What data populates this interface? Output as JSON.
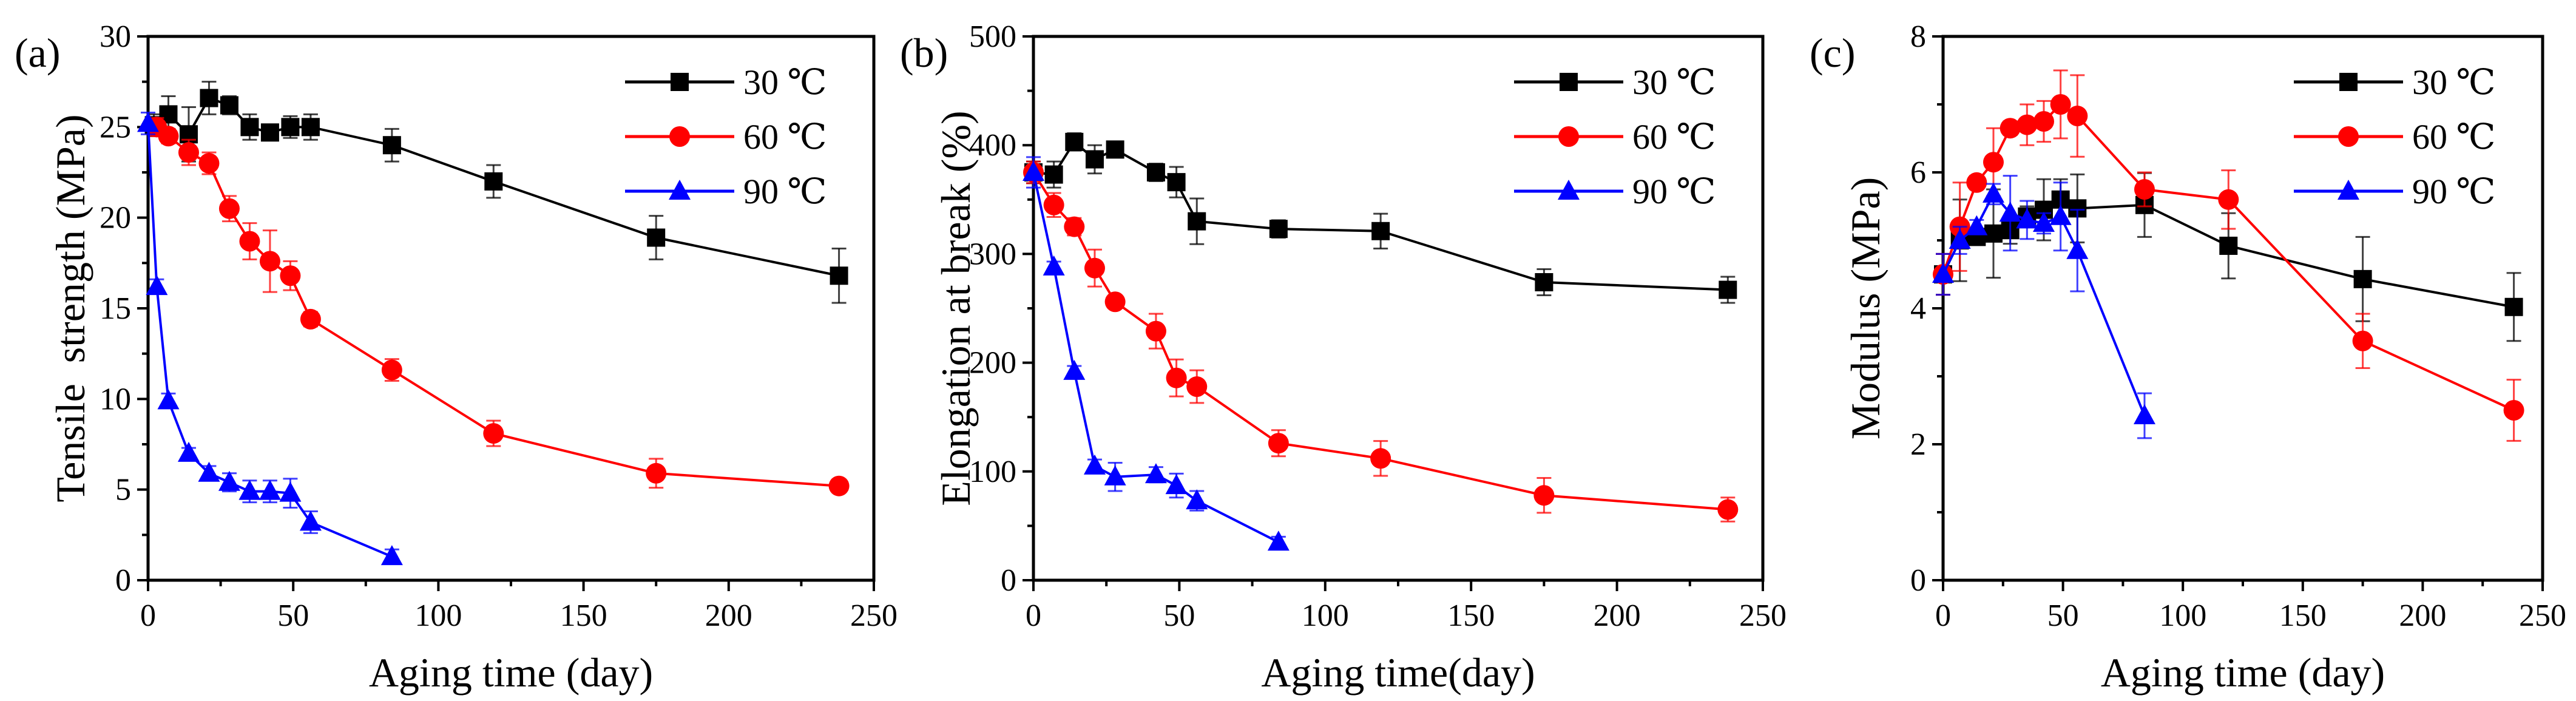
{
  "colors": {
    "30": "#000000",
    "60": "#ff0000",
    "90": "#0000ff"
  },
  "chart_data": [
    {
      "type": "line",
      "panel_label": "(a)",
      "xlabel": "Aging time (day)",
      "ylabel": "Tensile  strength (MPa)",
      "xlim": [
        0,
        250
      ],
      "ylim": [
        0,
        30
      ],
      "xticks": [
        0,
        50,
        100,
        150,
        200,
        250
      ],
      "yticks": [
        0,
        5,
        10,
        15,
        20,
        25,
        30
      ],
      "grid": false,
      "legend_position": "top-right",
      "series": [
        {
          "name": "30 ℃",
          "marker": "square",
          "color": "#000000",
          "x": [
            2,
            7,
            14,
            21,
            28,
            35,
            42,
            49,
            56,
            84,
            119,
            175,
            238
          ],
          "y": [
            25.1,
            25.7,
            24.6,
            26.6,
            26.2,
            25.0,
            24.7,
            25.0,
            25.0,
            24.0,
            22.0,
            18.9,
            16.8
          ],
          "err": [
            0.6,
            1.0,
            1.5,
            0.9,
            0.5,
            0.7,
            0.3,
            0.6,
            0.7,
            0.9,
            0.9,
            1.2,
            1.5
          ]
        },
        {
          "name": "60 ℃",
          "marker": "circle",
          "color": "#ff0000",
          "x": [
            3,
            7,
            14,
            21,
            28,
            35,
            42,
            49,
            56,
            84,
            119,
            175,
            238
          ],
          "y": [
            25.0,
            24.5,
            23.6,
            23.0,
            20.5,
            18.7,
            17.6,
            16.8,
            14.4,
            11.6,
            8.1,
            5.9,
            5.2
          ],
          "err": [
            0.5,
            0.4,
            0.7,
            0.6,
            0.7,
            1.0,
            1.7,
            0.8,
            0.4,
            0.6,
            0.7,
            0.8,
            0.3
          ]
        },
        {
          "name": "90 ℃",
          "marker": "triangle",
          "color": "#0000ff",
          "x": [
            0,
            3,
            7,
            14,
            21,
            28,
            35,
            42,
            49,
            56,
            84
          ],
          "y": [
            25.2,
            16.2,
            9.9,
            7.0,
            5.9,
            5.4,
            4.9,
            4.9,
            4.8,
            3.2,
            1.3
          ],
          "err": [
            0.6,
            0.4,
            0.4,
            0.3,
            0.4,
            0.5,
            0.6,
            0.6,
            0.8,
            0.6,
            0.4
          ]
        }
      ]
    },
    {
      "type": "line",
      "panel_label": "(b)",
      "xlabel": "Aging time(day)",
      "ylabel": "Elongation at break (%)",
      "xlim": [
        0,
        250
      ],
      "ylim": [
        0,
        500
      ],
      "xticks": [
        0,
        50,
        100,
        150,
        200,
        250
      ],
      "yticks": [
        0,
        100,
        200,
        300,
        400,
        500
      ],
      "grid": false,
      "legend_position": "top-right",
      "series": [
        {
          "name": "30 ℃",
          "marker": "square",
          "color": "#000000",
          "x": [
            0,
            7,
            14,
            21,
            28,
            42,
            49,
            56,
            84,
            119,
            175,
            238
          ],
          "y": [
            375,
            373,
            403,
            387,
            396,
            375,
            366,
            330,
            323,
            321,
            274,
            267
          ],
          "err": [
            10,
            12,
            8,
            13,
            5,
            8,
            14,
            21,
            8,
            16,
            12,
            12
          ]
        },
        {
          "name": "60 ℃",
          "marker": "circle",
          "color": "#ff0000",
          "x": [
            0,
            7,
            14,
            21,
            28,
            42,
            49,
            56,
            84,
            119,
            175,
            238
          ],
          "y": [
            375,
            345,
            325,
            287,
            256,
            229,
            186,
            178,
            126,
            112,
            78,
            65
          ],
          "err": [
            10,
            11,
            8,
            17,
            5,
            16,
            17,
            15,
            12,
            16,
            16,
            11
          ]
        },
        {
          "name": "90 ℃",
          "marker": "triangle",
          "color": "#0000ff",
          "x": [
            0,
            7,
            14,
            21,
            28,
            42,
            49,
            56,
            84
          ],
          "y": [
            375,
            288,
            192,
            105,
            95,
            97,
            87,
            73,
            35
          ],
          "err": [
            14,
            5,
            5,
            6,
            13,
            7,
            11,
            9,
            5
          ]
        }
      ]
    },
    {
      "type": "line",
      "panel_label": "(c)",
      "xlabel": "Aging time (day)",
      "ylabel": "Modulus (MPa)",
      "xlim": [
        0,
        250
      ],
      "ylim": [
        0,
        8
      ],
      "xticks": [
        0,
        50,
        100,
        150,
        200,
        250
      ],
      "yticks": [
        0,
        2,
        4,
        6,
        8
      ],
      "grid": false,
      "legend_position": "top-right",
      "series": [
        {
          "name": "30 ℃",
          "marker": "square",
          "color": "#000000",
          "x": [
            0,
            7,
            14,
            21,
            28,
            35,
            42,
            49,
            56,
            84,
            119,
            175,
            238
          ],
          "y": [
            4.5,
            5.0,
            5.05,
            5.1,
            5.15,
            5.35,
            5.45,
            5.6,
            5.47,
            5.52,
            4.92,
            4.43,
            4.02
          ],
          "err": [
            0.3,
            0.6,
            0.1,
            0.65,
            0.2,
            0.15,
            0.45,
            0.3,
            0.5,
            0.47,
            0.48,
            0.62,
            0.5
          ]
        },
        {
          "name": "60 ℃",
          "marker": "circle",
          "color": "#ff0000",
          "x": [
            0,
            7,
            14,
            21,
            28,
            35,
            42,
            49,
            56,
            84,
            119,
            175,
            238
          ],
          "y": [
            4.5,
            5.2,
            5.85,
            6.15,
            6.65,
            6.7,
            6.75,
            7.0,
            6.83,
            5.75,
            5.6,
            3.52,
            2.5
          ],
          "err": [
            0.3,
            0.65,
            0.1,
            0.5,
            0.1,
            0.3,
            0.3,
            0.5,
            0.6,
            0.25,
            0.43,
            0.4,
            0.45
          ]
        },
        {
          "name": "90 ℃",
          "marker": "triangle",
          "color": "#0000ff",
          "x": [
            0,
            7,
            14,
            21,
            28,
            35,
            42,
            49,
            56,
            84
          ],
          "y": [
            4.5,
            5.0,
            5.2,
            5.68,
            5.4,
            5.3,
            5.25,
            5.35,
            4.85,
            2.42
          ],
          "err": [
            0.3,
            0.2,
            0.1,
            0.15,
            0.55,
            0.28,
            0.15,
            0.5,
            0.6,
            0.33
          ]
        }
      ]
    }
  ]
}
